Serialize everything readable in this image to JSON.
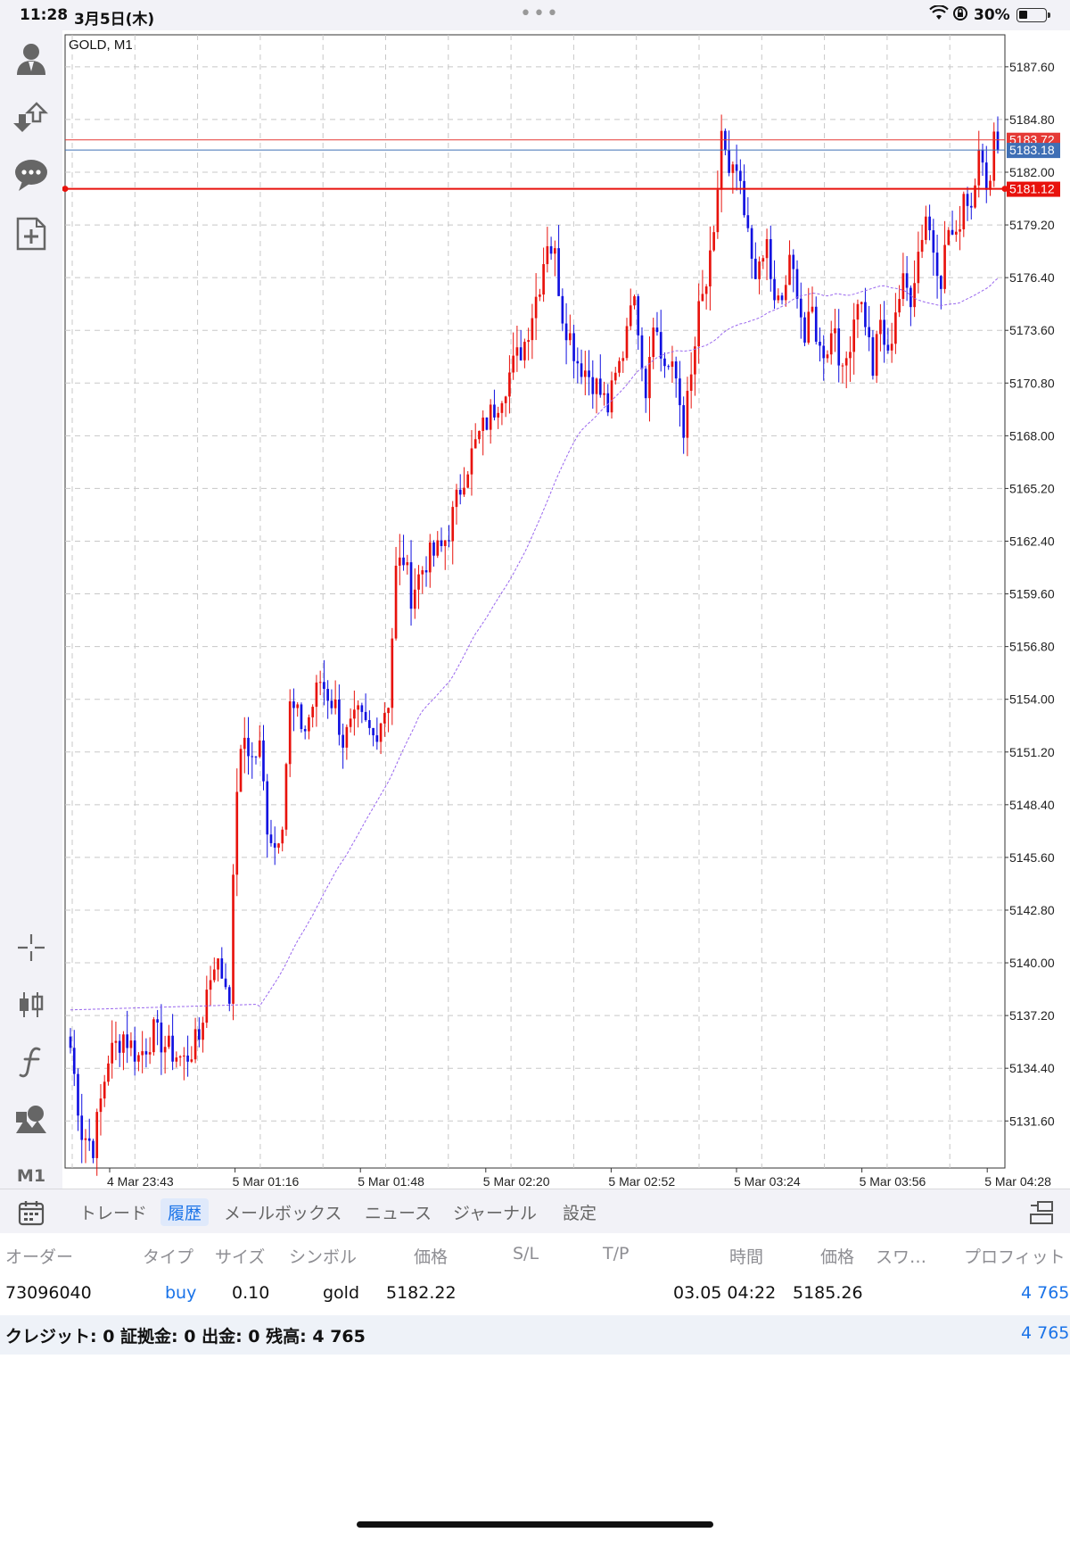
{
  "status_bar": {
    "time": "11:28",
    "date": "3月5日(木)",
    "battery_percent": "30%"
  },
  "toolbar_icons": [
    "account-icon",
    "trade-icon",
    "chat-icon",
    "new-order-icon",
    "crosshair-icon",
    "chart-type-icon",
    "indicator-icon",
    "objects-icon"
  ],
  "timeframe": "M1",
  "chart_data": {
    "type": "candlestick",
    "title": "GOLD, M1",
    "y_ticks": [
      "5187.60",
      "5184.80",
      "5182.00",
      "5179.20",
      "5176.40",
      "5173.60",
      "5170.80",
      "5168.00",
      "5165.20",
      "5162.40",
      "5159.60",
      "5156.80",
      "5154.00",
      "5151.20",
      "5148.40",
      "5145.60",
      "5142.80",
      "5140.00",
      "5137.20",
      "5134.40",
      "5131.60"
    ],
    "x_ticks": [
      "4 Mar 23:43",
      "5 Mar 01:16",
      "5 Mar 01:48",
      "5 Mar 02:20",
      "5 Mar 02:52",
      "5 Mar 03:24",
      "5 Mar 03:56",
      "5 Mar 04:28"
    ],
    "ylim": [
      5129.1,
      5189.3
    ],
    "price_lines": [
      {
        "label": "5183.72",
        "value": 5183.72,
        "color": "#e53935"
      },
      {
        "label": "5183.18",
        "value": 5183.18,
        "color": "#3f6fb5"
      },
      {
        "label": "5181.12",
        "value": 5181.12,
        "color": "#e8120c"
      }
    ],
    "bull_color": "#e8120c",
    "bear_color": "#1010e0",
    "ma_color": "#9966ee",
    "close_path": [
      [
        0,
        5135.5
      ],
      [
        3,
        5131.0
      ],
      [
        6,
        5130.3
      ],
      [
        10,
        5135.0
      ],
      [
        14,
        5136.2
      ],
      [
        18,
        5135.0
      ],
      [
        22,
        5136.3
      ],
      [
        26,
        5135.4
      ],
      [
        30,
        5134.8
      ],
      [
        34,
        5136.0
      ],
      [
        36,
        5138.5
      ],
      [
        38,
        5140.2
      ],
      [
        40,
        5139.4
      ],
      [
        42,
        5138.5
      ],
      [
        44,
        5149.5
      ],
      [
        46,
        5152.0
      ],
      [
        48,
        5150.8
      ],
      [
        50,
        5151.4
      ],
      [
        52,
        5147.4
      ],
      [
        54,
        5146.2
      ],
      [
        56,
        5147.8
      ],
      [
        58,
        5153.6
      ],
      [
        62,
        5152.4
      ],
      [
        66,
        5155.0
      ],
      [
        70,
        5153.6
      ],
      [
        72,
        5151.8
      ],
      [
        76,
        5153.0
      ],
      [
        80,
        5152.0
      ],
      [
        84,
        5154.0
      ],
      [
        86,
        5160.8
      ],
      [
        88,
        5161.5
      ],
      [
        90,
        5159.6
      ],
      [
        94,
        5161.4
      ],
      [
        98,
        5162.0
      ],
      [
        100,
        5163.0
      ],
      [
        104,
        5166.0
      ],
      [
        108,
        5168.0
      ],
      [
        112,
        5169.5
      ],
      [
        116,
        5171.3
      ],
      [
        120,
        5173.0
      ],
      [
        124,
        5176.2
      ],
      [
        126,
        5178.5
      ],
      [
        128,
        5177.5
      ],
      [
        130,
        5174.5
      ],
      [
        134,
        5172.0
      ],
      [
        138,
        5171.0
      ],
      [
        142,
        5169.5
      ],
      [
        146,
        5172.5
      ],
      [
        148,
        5175.6
      ],
      [
        150,
        5174.0
      ],
      [
        152,
        5170.5
      ],
      [
        154,
        5174.5
      ],
      [
        156,
        5172.2
      ],
      [
        160,
        5171.0
      ],
      [
        162,
        5168.5
      ],
      [
        164,
        5171.0
      ],
      [
        166,
        5174.5
      ],
      [
        168,
        5176.0
      ],
      [
        170,
        5178.2
      ],
      [
        172,
        5184.2
      ],
      [
        174,
        5181.5
      ],
      [
        176,
        5182.0
      ],
      [
        178,
        5179.5
      ],
      [
        180,
        5177.5
      ],
      [
        182,
        5176.5
      ],
      [
        184,
        5178.2
      ],
      [
        186,
        5174.8
      ],
      [
        188,
        5175.2
      ],
      [
        190,
        5177.0
      ],
      [
        192,
        5176.0
      ],
      [
        194,
        5173.0
      ],
      [
        196,
        5174.6
      ],
      [
        198,
        5172.5
      ],
      [
        200,
        5172.8
      ],
      [
        202,
        5174.0
      ],
      [
        204,
        5171.0
      ],
      [
        206,
        5173.2
      ],
      [
        208,
        5175.5
      ],
      [
        210,
        5174.2
      ],
      [
        212,
        5171.5
      ],
      [
        214,
        5174.0
      ],
      [
        216,
        5172.0
      ],
      [
        218,
        5174.8
      ],
      [
        220,
        5176.0
      ],
      [
        222,
        5175.5
      ],
      [
        224,
        5177.8
      ],
      [
        226,
        5179.8
      ],
      [
        228,
        5178.0
      ],
      [
        230,
        5176.5
      ],
      [
        232,
        5179.0
      ],
      [
        234,
        5178.2
      ],
      [
        236,
        5181.0
      ],
      [
        238,
        5180.3
      ],
      [
        240,
        5183.8
      ],
      [
        242,
        5180.5
      ],
      [
        244,
        5184.1
      ],
      [
        245,
        5183.18
      ]
    ]
  },
  "tabs": [
    {
      "label": "トレード"
    },
    {
      "label": "履歴"
    },
    {
      "label": "メールボックス"
    },
    {
      "label": "ニュース"
    },
    {
      "label": "ジャーナル"
    },
    {
      "label": "設定"
    }
  ],
  "history": {
    "columns": {
      "order": "オーダー",
      "type": "タイプ",
      "size": "サイズ",
      "symbol": "シンボル",
      "price": "価格",
      "sl": "S/L",
      "tp": "T/P",
      "time": "時間",
      "price2": "価格",
      "swap": "スワ…",
      "profit": "プロフィット"
    },
    "rows": [
      {
        "order": "73096040",
        "type": "buy",
        "size": "0.10",
        "symbol": "gold",
        "price": "5182.22",
        "time": "03.05 04:22",
        "close_price": "5185.26",
        "profit": "4 765"
      }
    ],
    "summary_text": "クレジット: 0  証拠金: 0  出金: 0  残高: 4 765",
    "summary_total": "4 765"
  }
}
